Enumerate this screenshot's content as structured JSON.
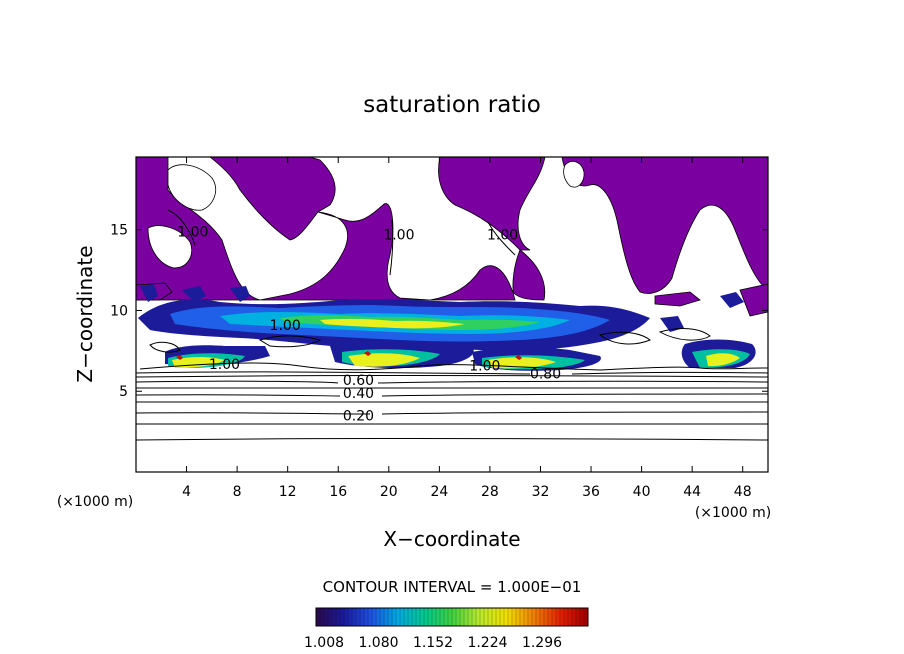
{
  "chart_data": {
    "type": "contour",
    "title": "saturation ratio",
    "xlabel": "X−coordinate",
    "ylabel": "Z−coordinate",
    "x_unit_left": "(×1000 m)",
    "x_unit_right": "(×1000 m)",
    "xlim": [
      0,
      50
    ],
    "ylim": [
      0,
      19.5
    ],
    "x_ticks": [
      4,
      8,
      12,
      16,
      20,
      24,
      28,
      32,
      36,
      40,
      44,
      48
    ],
    "y_ticks": [
      5,
      10,
      15
    ],
    "contour_interval_text": "CONTOUR INTERVAL = 1.000E−01",
    "colorbar": {
      "tick_labels": [
        "1.008",
        "1.080",
        "1.152",
        "1.224",
        "1.296"
      ],
      "colors": [
        "#2a0a4a",
        "#1a1a9a",
        "#1e50e0",
        "#00a8e0",
        "#00c890",
        "#40d040",
        "#b8e830",
        "#f0e000",
        "#f08000",
        "#e02000",
        "#a00000"
      ]
    },
    "contour_labels": [
      {
        "text": "0.20",
        "x": 17.6,
        "z": 3.5
      },
      {
        "text": "0.40",
        "x": 17.6,
        "z": 4.9
      },
      {
        "text": "0.60",
        "x": 17.6,
        "z": 5.7
      },
      {
        "text": "0.80",
        "x": 32.4,
        "z": 6.1
      },
      {
        "text": "1.00",
        "x": 7.0,
        "z": 6.7
      },
      {
        "text": "1.00",
        "x": 27.6,
        "z": 6.6
      },
      {
        "text": "1.00",
        "x": 11.8,
        "z": 9.1
      },
      {
        "text": "1.00",
        "x": 4.5,
        "z": 14.9
      },
      {
        "text": "1.00",
        "x": 20.8,
        "z": 14.7
      },
      {
        "text": "1.00",
        "x": 29.0,
        "z": 14.7
      }
    ],
    "grid": false
  }
}
